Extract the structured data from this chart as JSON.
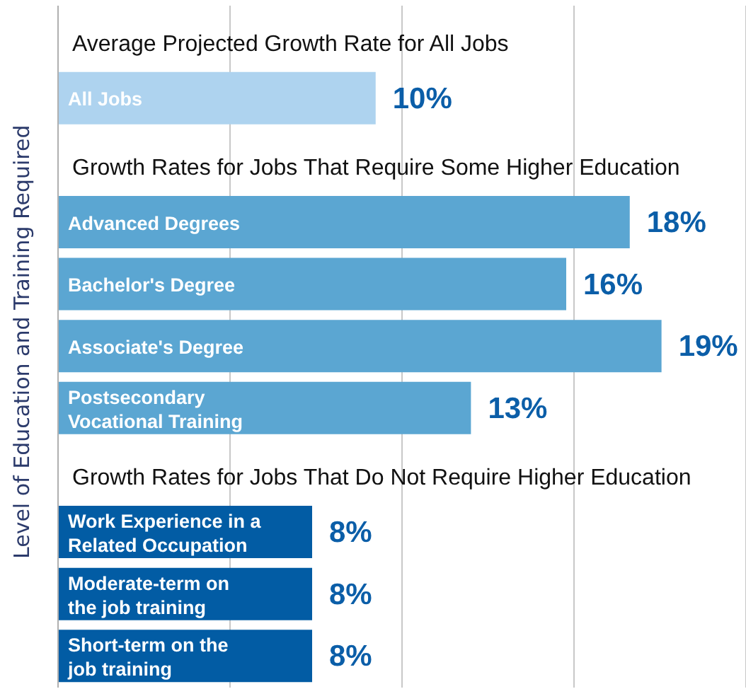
{
  "chart_data": {
    "type": "bar",
    "orientation": "horizontal",
    "ylabel": "Level of Education and Training Required",
    "annotations": [
      "Average Projected Growth Rate for All Jobs",
      "Growth Rates for Jobs That Require Some Higher Education",
      "Growth Rates for Jobs That Do Not Require Higher Education"
    ],
    "categories": [
      null,
      "All Jobs",
      null,
      "Advanced Degrees",
      "Bachelor's Degree",
      "Associate's Degree",
      "Postsecondary Vocational Training",
      null,
      "Work Experience in a Related Occupation",
      "Moderate-term on the job training",
      "Short-term on the job training"
    ],
    "values": [
      null,
      10,
      null,
      18,
      16,
      19,
      13,
      null,
      8,
      8,
      8
    ],
    "value_labels": [
      null,
      "10%",
      null,
      "18%",
      "16%",
      "19%",
      "13%",
      null,
      "8%",
      "8%",
      "8%"
    ],
    "colors": [
      null,
      "#aed3ef",
      null,
      "#5ba6d2",
      "#5ba6d2",
      "#5ba6d2",
      "#5ba6d2",
      null,
      "#025ca4",
      "#025ca4",
      "#025ca4"
    ],
    "grid": "x",
    "tick_labels": "y"
  }
}
